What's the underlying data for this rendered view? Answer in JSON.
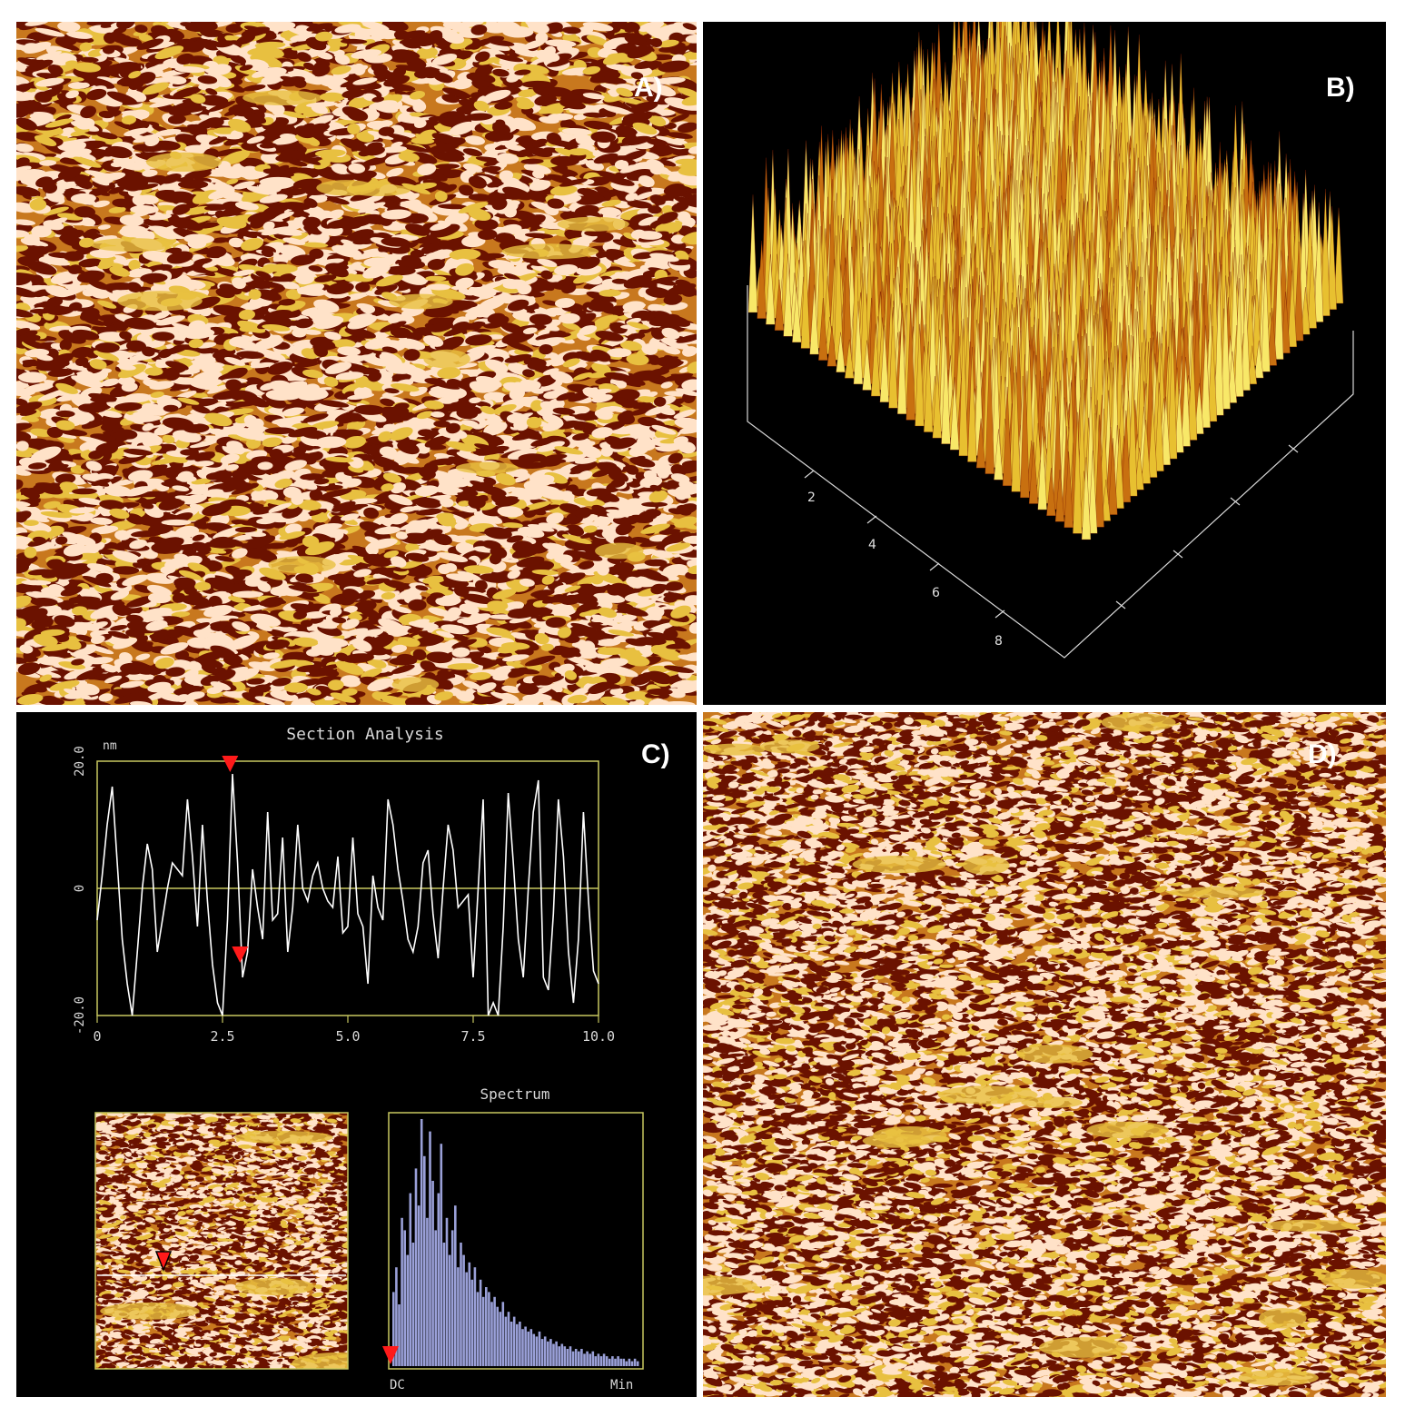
{
  "panels": {
    "a": {
      "label": "A)"
    },
    "b": {
      "label": "B)",
      "axis_ticks": [
        "2",
        "4",
        "6",
        "8"
      ]
    },
    "c": {
      "label": "C)",
      "section_title": "Section Analysis",
      "spectrum_title": "Spectrum"
    },
    "d": {
      "label": "D)"
    }
  },
  "colors": {
    "afm_dark": "#6b1200",
    "afm_mid": "#c8781e",
    "afm_light": "#ffe2c8",
    "afm_gold": "#e8c040",
    "plot_frame": "#c8c860",
    "marker": "#ff1a1a",
    "spectrum_bar": "#9aa0d8",
    "panel_bg": "#000000"
  },
  "chart_data": [
    {
      "type": "line",
      "title": "Section Analysis",
      "ylabel": "nm",
      "xlabel": "",
      "xlim": [
        0,
        10
      ],
      "ylim": [
        -20,
        20
      ],
      "x_ticks": [
        "0",
        "2.5",
        "5.0",
        "7.5",
        "10.0"
      ],
      "y_ticks": [
        "-20.0",
        "0",
        "20.0"
      ],
      "series": [
        {
          "x": [
            0,
            0.1,
            0.2,
            0.3,
            0.4,
            0.5,
            0.6,
            0.7,
            0.8,
            0.9,
            1.0,
            1.1,
            1.2,
            1.3,
            1.4,
            1.5,
            1.6,
            1.7,
            1.8,
            1.9,
            2.0,
            2.1,
            2.2,
            2.3,
            2.4,
            2.5,
            2.6,
            2.7,
            2.8,
            2.9,
            3.0,
            3.1,
            3.2,
            3.3,
            3.4,
            3.5,
            3.6,
            3.7,
            3.8,
            3.9,
            4.0,
            4.1,
            4.2,
            4.3,
            4.4,
            4.5,
            4.6,
            4.7,
            4.8,
            4.9,
            5.0,
            5.1,
            5.2,
            5.3,
            5.4,
            5.5,
            5.6,
            5.7,
            5.8,
            5.9,
            6.0,
            6.1,
            6.2,
            6.3,
            6.4,
            6.5,
            6.6,
            6.7,
            6.8,
            6.9,
            7.0,
            7.1,
            7.2,
            7.3,
            7.4,
            7.5,
            7.6,
            7.7,
            7.8,
            7.9,
            8.0,
            8.1,
            8.2,
            8.3,
            8.4,
            8.5,
            8.6,
            8.7,
            8.8,
            8.9,
            9.0,
            9.1,
            9.2,
            9.3,
            9.4,
            9.5,
            9.6,
            9.7,
            9.8,
            9.9,
            10.0
          ],
          "values": [
            -5,
            2,
            10,
            16,
            4,
            -8,
            -15,
            -20,
            -10,
            0,
            7,
            3,
            -10,
            -5,
            0,
            4,
            3,
            2,
            14,
            5,
            -6,
            10,
            -2,
            -12,
            -18,
            -20,
            -5,
            18,
            4,
            -14,
            -10,
            3,
            -3,
            -8,
            12,
            -5,
            -4,
            8,
            -10,
            -3,
            10,
            0,
            -2,
            2,
            4,
            0,
            -2,
            -3,
            5,
            -7,
            -6,
            8,
            -4,
            -6,
            -15,
            2,
            -3,
            -5,
            14,
            10,
            3,
            -2,
            -8,
            -10,
            -6,
            4,
            6,
            -4,
            -11,
            0,
            10,
            6,
            -3,
            -2,
            -1,
            -14,
            0,
            14,
            -20,
            -18,
            -20,
            -6,
            15,
            4,
            -8,
            -14,
            0,
            12,
            17,
            -14,
            -16,
            -4,
            14,
            5,
            -10,
            -18,
            -8,
            12,
            -2,
            -13,
            -15
          ]
        }
      ],
      "markers": [
        {
          "x": 2.65,
          "y": 18
        },
        {
          "x": 2.85,
          "y": -12
        }
      ]
    },
    {
      "type": "bar",
      "title": "Spectrum",
      "x_ticks": [
        "DC",
        "Min"
      ],
      "values": [
        30,
        40,
        25,
        60,
        55,
        45,
        70,
        50,
        80,
        65,
        100,
        85,
        60,
        95,
        75,
        55,
        70,
        90,
        50,
        60,
        45,
        55,
        65,
        40,
        50,
        45,
        38,
        42,
        35,
        40,
        30,
        35,
        28,
        32,
        30,
        26,
        28,
        24,
        22,
        26,
        20,
        22,
        18,
        20,
        17,
        18,
        15,
        16,
        14,
        15,
        13,
        12,
        14,
        11,
        12,
        10,
        11,
        9,
        10,
        8,
        9,
        8,
        7,
        8,
        6,
        7,
        6,
        7,
        5,
        6,
        5,
        6,
        4,
        5,
        4,
        5,
        4,
        3,
        4,
        3,
        4,
        3,
        3,
        2,
        3,
        2,
        3,
        2
      ]
    }
  ]
}
